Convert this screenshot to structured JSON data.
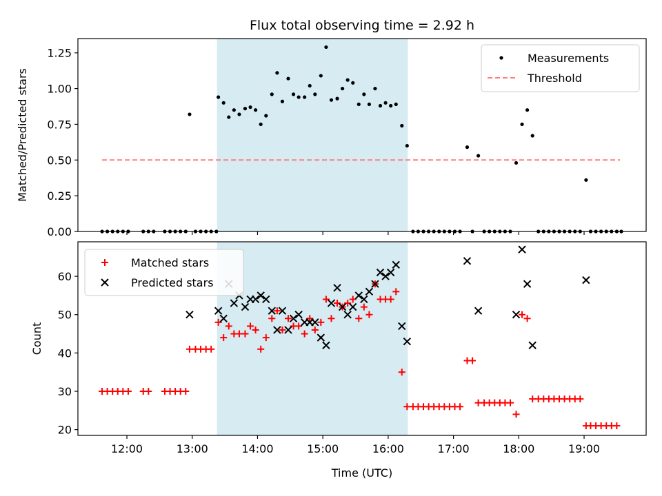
{
  "chart_data": [
    {
      "type": "scatter",
      "title": "Flux total observing time = 2.92 h",
      "ylabel": "Matched/Predicted stars",
      "xlabel": "",
      "xlim_hours": [
        11.25,
        19.95
      ],
      "ylim": [
        0,
        1.35
      ],
      "xticks": [
        "12:00",
        "13:00",
        "14:00",
        "15:00",
        "16:00",
        "17:00",
        "18:00",
        "19:00"
      ],
      "yticks": [
        "0.00",
        "0.25",
        "0.50",
        "0.75",
        "1.00",
        "1.25"
      ],
      "shaded_region_hours": [
        13.38,
        16.3
      ],
      "threshold": {
        "name": "Threshold",
        "y": 0.5,
        "x": [
          11.62,
          19.55
        ],
        "color": "#ff7f7f"
      },
      "legend_position": "upper right",
      "series": [
        {
          "name": "Measurements",
          "color": "#000000",
          "marker": "dot",
          "points": [
            [
              11.62,
              0
            ],
            [
              11.7,
              0
            ],
            [
              11.78,
              0
            ],
            [
              11.86,
              0
            ],
            [
              11.94,
              0
            ],
            [
              12.02,
              0
            ],
            [
              12.25,
              0
            ],
            [
              12.33,
              0
            ],
            [
              12.41,
              0
            ],
            [
              12.58,
              0
            ],
            [
              12.66,
              0
            ],
            [
              12.74,
              0
            ],
            [
              12.82,
              0
            ],
            [
              12.9,
              0
            ],
            [
              12.96,
              0.82
            ],
            [
              13.05,
              0
            ],
            [
              13.13,
              0
            ],
            [
              13.21,
              0
            ],
            [
              13.29,
              0
            ],
            [
              13.37,
              0
            ],
            [
              13.4,
              0.94
            ],
            [
              13.48,
              0.9
            ],
            [
              13.56,
              0.8
            ],
            [
              13.64,
              0.85
            ],
            [
              13.72,
              0.82
            ],
            [
              13.81,
              0.86
            ],
            [
              13.89,
              0.87
            ],
            [
              13.97,
              0.85
            ],
            [
              14.05,
              0.75
            ],
            [
              14.13,
              0.81
            ],
            [
              14.22,
              0.96
            ],
            [
              14.3,
              1.11
            ],
            [
              14.38,
              0.91
            ],
            [
              14.47,
              1.07
            ],
            [
              14.55,
              0.96
            ],
            [
              14.63,
              0.94
            ],
            [
              14.72,
              0.94
            ],
            [
              14.8,
              1.02
            ],
            [
              14.88,
              0.96
            ],
            [
              14.97,
              1.09
            ],
            [
              15.05,
              1.29
            ],
            [
              15.13,
              0.92
            ],
            [
              15.22,
              0.93
            ],
            [
              15.3,
              1.0
            ],
            [
              15.38,
              1.06
            ],
            [
              15.46,
              1.04
            ],
            [
              15.55,
              0.89
            ],
            [
              15.63,
              0.96
            ],
            [
              15.71,
              0.89
            ],
            [
              15.8,
              1.0
            ],
            [
              15.88,
              0.88
            ],
            [
              15.96,
              0.9
            ],
            [
              16.04,
              0.88
            ],
            [
              16.12,
              0.89
            ],
            [
              16.21,
              0.74
            ],
            [
              16.29,
              0.6
            ],
            [
              16.38,
              0
            ],
            [
              16.46,
              0
            ],
            [
              16.54,
              0
            ],
            [
              16.62,
              0
            ],
            [
              16.7,
              0
            ],
            [
              16.78,
              0
            ],
            [
              16.86,
              0
            ],
            [
              16.94,
              0
            ],
            [
              17.02,
              0
            ],
            [
              17.1,
              0
            ],
            [
              17.21,
              0.59
            ],
            [
              17.29,
              0
            ],
            [
              17.38,
              0.53
            ],
            [
              17.47,
              0
            ],
            [
              17.55,
              0
            ],
            [
              17.63,
              0
            ],
            [
              17.71,
              0
            ],
            [
              17.79,
              0
            ],
            [
              17.87,
              0
            ],
            [
              17.96,
              0.48
            ],
            [
              18.05,
              0.75
            ],
            [
              18.13,
              0.85
            ],
            [
              18.21,
              0.67
            ],
            [
              18.3,
              0
            ],
            [
              18.38,
              0
            ],
            [
              18.46,
              0
            ],
            [
              18.54,
              0
            ],
            [
              18.62,
              0
            ],
            [
              18.7,
              0
            ],
            [
              18.78,
              0
            ],
            [
              18.86,
              0
            ],
            [
              18.94,
              0
            ],
            [
              19.03,
              0.36
            ],
            [
              19.1,
              0
            ],
            [
              19.18,
              0
            ],
            [
              19.26,
              0
            ],
            [
              19.34,
              0
            ],
            [
              19.42,
              0
            ],
            [
              19.5,
              0
            ],
            [
              19.57,
              0
            ]
          ]
        }
      ]
    },
    {
      "type": "scatter",
      "title": "",
      "ylabel": "Count",
      "xlabel": "Time (UTC)",
      "xlim_hours": [
        11.25,
        19.95
      ],
      "ylim": [
        18.5,
        69
      ],
      "xticks": [
        "12:00",
        "13:00",
        "14:00",
        "15:00",
        "16:00",
        "17:00",
        "18:00",
        "19:00"
      ],
      "yticks": [
        "20",
        "30",
        "40",
        "50",
        "60"
      ],
      "shaded_region_hours": [
        13.38,
        16.3
      ],
      "legend_position": "upper left",
      "series": [
        {
          "name": "Matched stars",
          "color": "#ff0000",
          "marker": "plus",
          "points": [
            [
              11.62,
              30
            ],
            [
              11.7,
              30
            ],
            [
              11.78,
              30
            ],
            [
              11.86,
              30
            ],
            [
              11.94,
              30
            ],
            [
              12.02,
              30
            ],
            [
              12.25,
              30
            ],
            [
              12.33,
              30
            ],
            [
              12.58,
              30
            ],
            [
              12.66,
              30
            ],
            [
              12.74,
              30
            ],
            [
              12.82,
              30
            ],
            [
              12.9,
              30
            ],
            [
              12.96,
              41
            ],
            [
              13.05,
              41
            ],
            [
              13.13,
              41
            ],
            [
              13.21,
              41
            ],
            [
              13.29,
              41
            ],
            [
              13.4,
              48
            ],
            [
              13.48,
              44
            ],
            [
              13.56,
              47
            ],
            [
              13.64,
              45
            ],
            [
              13.72,
              45
            ],
            [
              13.81,
              45
            ],
            [
              13.89,
              47
            ],
            [
              13.97,
              46
            ],
            [
              14.05,
              41
            ],
            [
              14.13,
              44
            ],
            [
              14.22,
              49
            ],
            [
              14.3,
              51
            ],
            [
              14.38,
              46
            ],
            [
              14.47,
              49
            ],
            [
              14.55,
              47
            ],
            [
              14.63,
              47
            ],
            [
              14.72,
              45
            ],
            [
              14.8,
              49
            ],
            [
              14.88,
              46
            ],
            [
              14.97,
              48
            ],
            [
              15.05,
              54
            ],
            [
              15.13,
              49
            ],
            [
              15.22,
              53
            ],
            [
              15.3,
              52
            ],
            [
              15.38,
              53
            ],
            [
              15.46,
              54
            ],
            [
              15.55,
              49
            ],
            [
              15.63,
              52
            ],
            [
              15.71,
              50
            ],
            [
              15.8,
              58
            ],
            [
              15.88,
              54
            ],
            [
              15.96,
              54
            ],
            [
              16.04,
              54
            ],
            [
              16.12,
              56
            ],
            [
              16.21,
              35
            ],
            [
              16.29,
              26
            ],
            [
              16.38,
              26
            ],
            [
              16.46,
              26
            ],
            [
              16.54,
              26
            ],
            [
              16.62,
              26
            ],
            [
              16.7,
              26
            ],
            [
              16.78,
              26
            ],
            [
              16.86,
              26
            ],
            [
              16.94,
              26
            ],
            [
              17.02,
              26
            ],
            [
              17.1,
              26
            ],
            [
              17.21,
              38
            ],
            [
              17.29,
              38
            ],
            [
              17.38,
              27
            ],
            [
              17.47,
              27
            ],
            [
              17.55,
              27
            ],
            [
              17.63,
              27
            ],
            [
              17.71,
              27
            ],
            [
              17.79,
              27
            ],
            [
              17.87,
              27
            ],
            [
              17.96,
              24
            ],
            [
              18.05,
              50
            ],
            [
              18.13,
              49
            ],
            [
              18.21,
              28
            ],
            [
              18.3,
              28
            ],
            [
              18.38,
              28
            ],
            [
              18.46,
              28
            ],
            [
              18.54,
              28
            ],
            [
              18.62,
              28
            ],
            [
              18.7,
              28
            ],
            [
              18.78,
              28
            ],
            [
              18.86,
              28
            ],
            [
              18.94,
              28
            ],
            [
              19.03,
              21
            ],
            [
              19.1,
              21
            ],
            [
              19.18,
              21
            ],
            [
              19.26,
              21
            ],
            [
              19.34,
              21
            ],
            [
              19.42,
              21
            ],
            [
              19.5,
              21
            ]
          ]
        },
        {
          "name": "Predicted stars",
          "color": "#000000",
          "marker": "x",
          "points": [
            [
              12.96,
              50
            ],
            [
              13.4,
              51
            ],
            [
              13.48,
              49
            ],
            [
              13.56,
              58
            ],
            [
              13.64,
              53
            ],
            [
              13.72,
              55
            ],
            [
              13.81,
              52
            ],
            [
              13.89,
              54
            ],
            [
              13.97,
              54
            ],
            [
              14.05,
              55
            ],
            [
              14.13,
              54
            ],
            [
              14.22,
              51
            ],
            [
              14.3,
              46
            ],
            [
              14.38,
              51
            ],
            [
              14.47,
              46
            ],
            [
              14.55,
              49
            ],
            [
              14.63,
              50
            ],
            [
              14.72,
              48
            ],
            [
              14.8,
              48
            ],
            [
              14.88,
              48
            ],
            [
              14.97,
              44
            ],
            [
              15.05,
              42
            ],
            [
              15.13,
              53
            ],
            [
              15.22,
              57
            ],
            [
              15.3,
              52
            ],
            [
              15.38,
              50
            ],
            [
              15.46,
              52
            ],
            [
              15.55,
              55
            ],
            [
              15.63,
              54
            ],
            [
              15.71,
              56
            ],
            [
              15.8,
              58
            ],
            [
              15.88,
              61
            ],
            [
              15.96,
              60
            ],
            [
              16.04,
              61
            ],
            [
              16.12,
              63
            ],
            [
              16.21,
              47
            ],
            [
              16.29,
              43
            ],
            [
              17.21,
              64
            ],
            [
              17.38,
              51
            ],
            [
              17.96,
              50
            ],
            [
              18.05,
              67
            ],
            [
              18.13,
              58
            ],
            [
              18.21,
              42
            ],
            [
              19.03,
              59
            ]
          ]
        }
      ]
    }
  ]
}
